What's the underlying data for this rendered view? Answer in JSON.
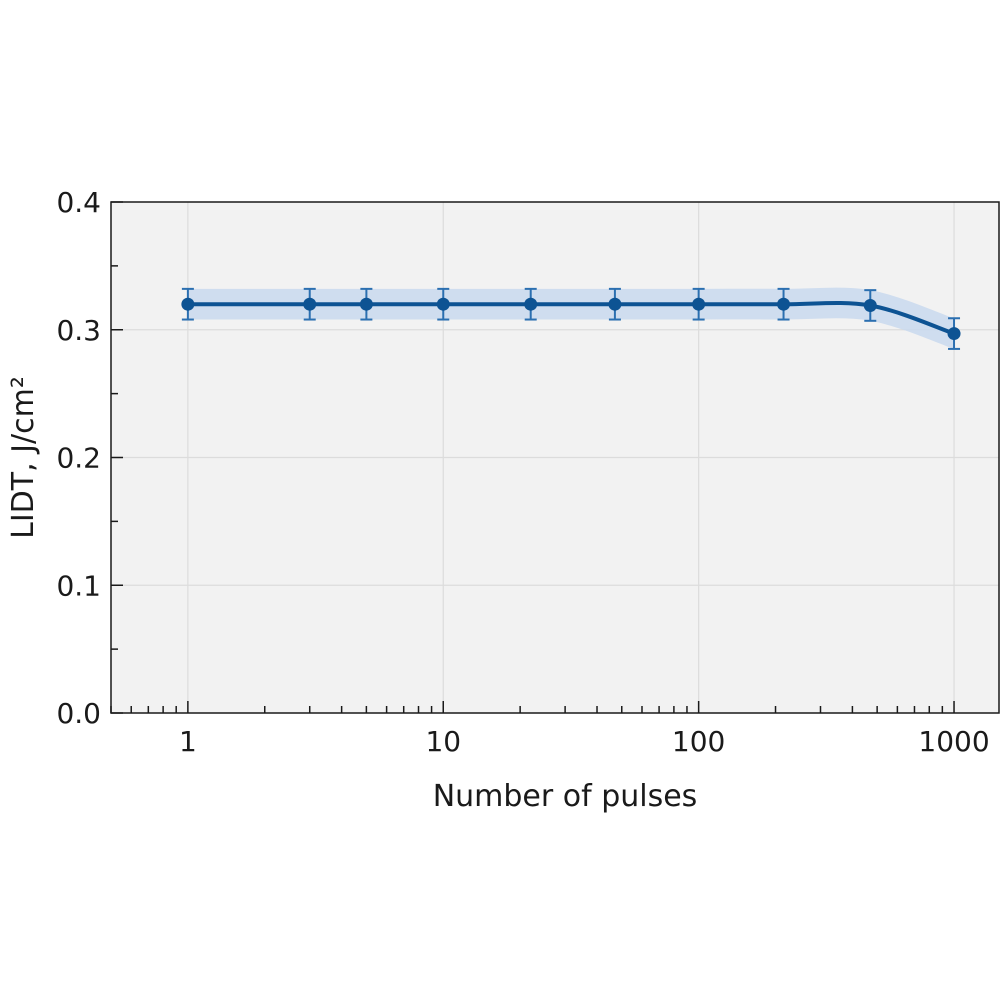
{
  "chart_data": {
    "type": "line",
    "title": "",
    "xlabel": "Number of pulses",
    "ylabel": "LIDT, J/cm²",
    "xscale": "log",
    "xlim": [
      0.5,
      1500
    ],
    "ylim": [
      0.0,
      0.4
    ],
    "grid": true,
    "x_ticks": [
      1,
      10,
      100,
      1000
    ],
    "x_tick_labels": [
      "1",
      "10",
      "100",
      "1000"
    ],
    "y_ticks": [
      0.0,
      0.1,
      0.2,
      0.3,
      0.4
    ],
    "y_tick_labels": [
      "0.0",
      "0.1",
      "0.2",
      "0.3",
      "0.4"
    ],
    "series": [
      {
        "x": [
          1,
          3,
          5,
          10,
          22,
          47,
          100,
          215,
          470,
          1000
        ],
        "y": [
          0.32,
          0.32,
          0.32,
          0.32,
          0.32,
          0.32,
          0.32,
          0.32,
          0.319,
          0.297
        ],
        "error": [
          0.012,
          0.012,
          0.012,
          0.012,
          0.012,
          0.012,
          0.012,
          0.012,
          0.012,
          0.012
        ],
        "band": 0.012
      }
    ],
    "colors": {
      "line": "#0d5393",
      "errorbar": "#2b6fb0",
      "band": "#c9d9ef",
      "plot_background": "#f2f2f2",
      "grid": "#dcdcdc"
    }
  }
}
